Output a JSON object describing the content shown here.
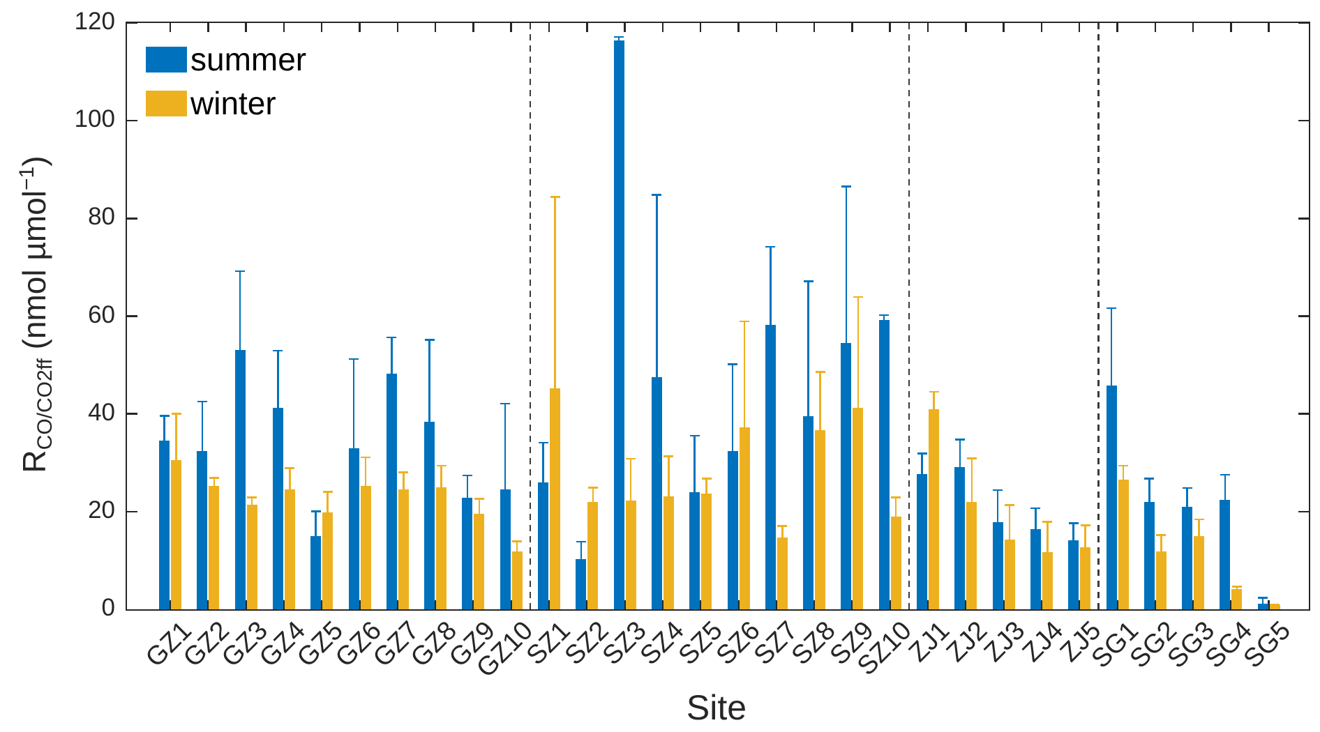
{
  "chart_data": {
    "type": "bar",
    "title": "",
    "xlabel": "Site",
    "ylabel": {
      "prefix": "R",
      "sub": "CO/CO2ff",
      "mid": " (nmol µmol",
      "sup": "−1",
      "suffix": ")"
    },
    "ylim": [
      0,
      120
    ],
    "yticks": [
      0,
      20,
      40,
      60,
      80,
      100,
      120
    ],
    "grid": false,
    "legend_position": "top-left-inside",
    "error_bars": "upper-only",
    "separator_style": "vertical-dashed-lines",
    "separators_after_index": [
      9,
      19,
      24
    ],
    "categories": [
      "GZ1",
      "GZ2",
      "GZ3",
      "GZ4",
      "GZ5",
      "GZ6",
      "GZ7",
      "GZ8",
      "GZ9",
      "GZ10",
      "SZ1",
      "SZ2",
      "SZ3",
      "SZ4",
      "SZ5",
      "SZ6",
      "SZ7",
      "SZ8",
      "SZ9",
      "SZ10",
      "ZJ1",
      "ZJ2",
      "ZJ3",
      "ZJ4",
      "ZJ5",
      "SG1",
      "SG2",
      "SG3",
      "SG4",
      "SG5"
    ],
    "series": [
      {
        "name": "summer",
        "color": "#0072BD",
        "values": [
          34.5,
          32.4,
          53.1,
          41.3,
          15.0,
          33.0,
          48.2,
          38.4,
          22.8,
          24.5,
          25.9,
          10.3,
          116.5,
          47.5,
          24.0,
          32.4,
          58.2,
          39.5,
          54.5,
          59.2,
          27.7,
          29.1,
          17.8,
          16.4,
          14.1,
          45.8,
          22.0,
          21.0,
          22.4,
          1.2
        ],
        "err_up": [
          5.3,
          10.3,
          16.3,
          11.8,
          5.2,
          18.4,
          7.6,
          16.9,
          4.8,
          17.8,
          8.4,
          3.7,
          0.8,
          37.5,
          11.7,
          17.9,
          16.2,
          27.8,
          32.2,
          1.2,
          4.4,
          5.8,
          6.8,
          4.5,
          3.7,
          16.0,
          4.9,
          4.0,
          5.3,
          1.3
        ]
      },
      {
        "name": "winter",
        "color": "#EDB120",
        "values": [
          30.5,
          25.3,
          21.4,
          24.5,
          19.8,
          25.3,
          24.5,
          25.0,
          19.5,
          11.8,
          45.3,
          22.0,
          22.3,
          23.1,
          23.7,
          37.2,
          14.7,
          36.7,
          41.2,
          19.0,
          40.9,
          22.0,
          14.3,
          11.7,
          12.7,
          26.5,
          11.8,
          15.0,
          4.2,
          0.9
        ],
        "err_up": [
          9.7,
          1.8,
          1.7,
          4.6,
          4.4,
          6.0,
          3.7,
          4.6,
          3.3,
          2.3,
          39.3,
          3.1,
          8.7,
          8.4,
          3.2,
          21.9,
          2.5,
          12.1,
          22.9,
          4.1,
          3.8,
          9.1,
          7.2,
          6.4,
          4.7,
          3.1,
          3.6,
          3.6,
          0.6,
          0.2
        ]
      }
    ]
  }
}
